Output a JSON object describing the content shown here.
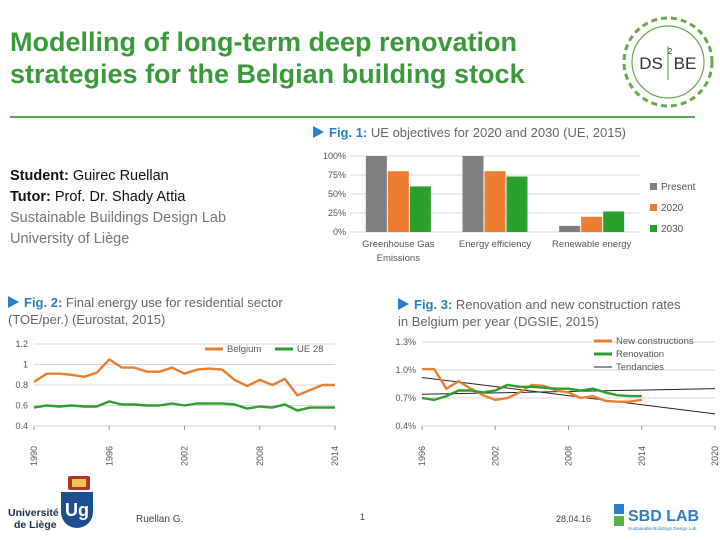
{
  "title_line1": "Modelling of long-term deep renovation",
  "title_line2": "strategies for the Belgian building stock",
  "logo_dsbe": {
    "text_left": "DS",
    "text_sup": "2",
    "text_right": "BE"
  },
  "people": {
    "student_label": "Student:",
    "student_name": "Guirec Ruellan",
    "tutor_label": "Tutor:",
    "tutor_name": "Prof. Dr. Shady Attia",
    "lab": "Sustainable Buildings Design Lab",
    "university": "University of Liège"
  },
  "fig1": {
    "label": "Fig. 1:",
    "text": "UE objectives for 2020 and 2030 (UE, 2015)"
  },
  "fig2": {
    "label": "Fig. 2:",
    "text": "Final energy use for residential sector",
    "text2": "(TOE/per.) (Eurostat, 2015)"
  },
  "fig3": {
    "label": "Fig. 3:",
    "text": "Renovation and new construction rates",
    "text2": "in Belgium per year (DGSIE, 2015)"
  },
  "colors": {
    "grey": "#7f7f7f",
    "orange": "#ed7d31",
    "green": "#2ca02c",
    "black": "#222222",
    "title_green": "#3a9a3a",
    "caption_blue": "#2a7fc8"
  },
  "chart_data": [
    {
      "type": "bar",
      "categories": [
        "Greenhouse Gas Emissions",
        "Energy efficiency",
        "Renewable energy"
      ],
      "series": [
        {
          "name": "Present",
          "values": [
            100,
            100,
            8
          ],
          "color": "#7f7f7f"
        },
        {
          "name": "2020",
          "values": [
            80,
            80,
            20
          ],
          "color": "#ed7d31"
        },
        {
          "name": "2030",
          "values": [
            60,
            73,
            27
          ],
          "color": "#2ca02c"
        }
      ],
      "yticks": [
        "0%",
        "25%",
        "50%",
        "75%",
        "100%"
      ],
      "ylim": [
        0,
        100
      ],
      "legend": "right"
    },
    {
      "type": "line",
      "x": [
        1990,
        1991,
        1992,
        1993,
        1994,
        1995,
        1996,
        1997,
        1998,
        1999,
        2000,
        2001,
        2002,
        2003,
        2004,
        2005,
        2006,
        2007,
        2008,
        2009,
        2010,
        2011,
        2012,
        2013,
        2014
      ],
      "series": [
        {
          "name": "Belgium",
          "color": "#ed7d31",
          "values": [
            0.83,
            0.91,
            0.91,
            0.9,
            0.88,
            0.92,
            1.05,
            0.97,
            0.97,
            0.93,
            0.93,
            0.97,
            0.91,
            0.95,
            0.96,
            0.95,
            0.85,
            0.79,
            0.85,
            0.8,
            0.86,
            0.7,
            0.75,
            0.8,
            0.8
          ]
        },
        {
          "name": "UE 28",
          "color": "#2ca02c",
          "values": [
            0.58,
            0.6,
            0.59,
            0.6,
            0.59,
            0.59,
            0.64,
            0.61,
            0.61,
            0.6,
            0.6,
            0.62,
            0.6,
            0.62,
            0.62,
            0.62,
            0.61,
            0.57,
            0.59,
            0.58,
            0.61,
            0.55,
            0.58,
            0.58,
            0.58
          ]
        }
      ],
      "ylim": [
        0.4,
        1.2
      ],
      "yticks": [
        "0.4",
        "0.6",
        "0.8",
        "1",
        "1.2"
      ],
      "xticks": [
        "1990",
        "1996",
        "2002",
        "2008",
        "2014"
      ],
      "legend": "top-right"
    },
    {
      "type": "line",
      "x": [
        1996,
        1997,
        1998,
        1999,
        2000,
        2001,
        2002,
        2003,
        2004,
        2005,
        2006,
        2007,
        2008,
        2009,
        2010,
        2011,
        2012,
        2013,
        2014
      ],
      "series": [
        {
          "name": "New constructions",
          "color": "#ed7d31",
          "values": [
            1.01,
            1.01,
            0.8,
            0.88,
            0.8,
            0.73,
            0.68,
            0.7,
            0.76,
            0.84,
            0.83,
            0.78,
            0.76,
            0.7,
            0.72,
            0.67,
            0.66,
            0.66,
            0.68
          ]
        },
        {
          "name": "Renovation",
          "color": "#2ca02c",
          "values": [
            0.7,
            0.68,
            0.72,
            0.78,
            0.78,
            0.76,
            0.78,
            0.84,
            0.82,
            0.82,
            0.81,
            0.8,
            0.8,
            0.78,
            0.8,
            0.76,
            0.73,
            0.72,
            0.72
          ]
        }
      ],
      "trends": [
        {
          "name": "Tendancies",
          "from": [
            1996,
            0.92
          ],
          "to": [
            2020,
            0.53
          ]
        },
        {
          "from": [
            1996,
            0.74
          ],
          "to": [
            2020,
            0.8
          ]
        }
      ],
      "ylim": [
        0.4,
        1.3
      ],
      "yticks": [
        "0.4%",
        "0.7%",
        "1.0%",
        "1.3%"
      ],
      "xticks": [
        "1996",
        "2002",
        "2008",
        "2014",
        "2020"
      ],
      "legend": "top-right"
    }
  ],
  "footer": {
    "author": "Ruellan G.",
    "page": "1",
    "date": "28.04.16",
    "sbd_text": "SBD LAB",
    "sbd_sub": "Sustainable Buildings Design Lab",
    "uni1": "Université",
    "uni2": "de Liège"
  }
}
